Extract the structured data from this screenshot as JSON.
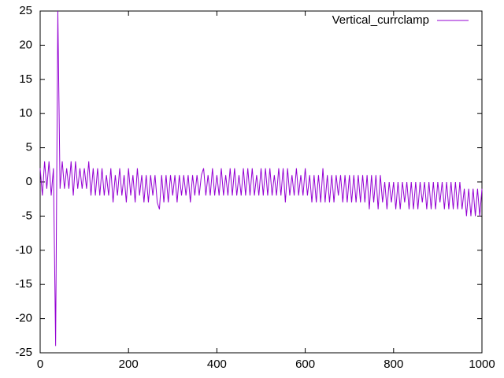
{
  "chart_data": {
    "type": "line",
    "x": [
      0,
      5,
      10,
      15,
      20,
      25,
      30,
      35,
      40,
      45,
      50,
      55,
      60,
      65,
      70,
      75,
      80,
      85,
      90,
      95,
      100,
      105,
      110,
      115,
      120,
      125,
      130,
      135,
      140,
      145,
      150,
      155,
      160,
      165,
      170,
      175,
      180,
      185,
      190,
      195,
      200,
      205,
      210,
      215,
      220,
      225,
      230,
      235,
      240,
      245,
      250,
      255,
      260,
      265,
      270,
      275,
      280,
      285,
      290,
      295,
      300,
      305,
      310,
      315,
      320,
      325,
      330,
      335,
      340,
      345,
      350,
      355,
      360,
      365,
      370,
      375,
      380,
      385,
      390,
      395,
      400,
      405,
      410,
      415,
      420,
      425,
      430,
      435,
      440,
      445,
      450,
      455,
      460,
      465,
      470,
      475,
      480,
      485,
      490,
      495,
      500,
      505,
      510,
      515,
      520,
      525,
      530,
      535,
      540,
      545,
      550,
      555,
      560,
      565,
      570,
      575,
      580,
      585,
      590,
      595,
      600,
      605,
      610,
      615,
      620,
      625,
      630,
      635,
      640,
      645,
      650,
      655,
      660,
      665,
      670,
      675,
      680,
      685,
      690,
      695,
      700,
      705,
      710,
      715,
      720,
      725,
      730,
      735,
      740,
      745,
      750,
      755,
      760,
      765,
      770,
      775,
      780,
      785,
      790,
      795,
      800,
      805,
      810,
      815,
      820,
      825,
      830,
      835,
      840,
      845,
      850,
      855,
      860,
      865,
      870,
      875,
      880,
      885,
      890,
      895,
      900,
      905,
      910,
      915,
      920,
      925,
      930,
      935,
      940,
      945,
      950,
      955,
      960,
      965,
      970,
      975,
      980,
      985,
      990,
      995,
      1000
    ],
    "series": [
      {
        "name": "Vertical_currclamp",
        "color": "#9400d3",
        "values": [
          2,
          -2,
          3,
          -1,
          3,
          -2,
          2,
          -24,
          25,
          -1,
          3,
          -1,
          2,
          -1,
          3,
          -2,
          3,
          -1,
          2,
          -1,
          2,
          -1,
          3,
          -2,
          2,
          -2,
          2,
          -2,
          2,
          -2,
          1,
          -2,
          2,
          -3,
          1,
          -2,
          2,
          -2,
          1,
          -3,
          2,
          -2,
          1,
          -3,
          2,
          -2,
          1,
          -3,
          1,
          -3,
          1,
          -2,
          1,
          -3,
          -4,
          1,
          -3,
          1,
          -3,
          1,
          -2,
          1,
          -3,
          1,
          -2,
          1,
          -2,
          1,
          -3,
          1,
          -2,
          1,
          -2,
          1,
          2,
          -2,
          1,
          -2,
          2,
          -2,
          1,
          -2,
          2,
          -2,
          1,
          -2,
          2,
          -2,
          2,
          -2,
          1,
          -2,
          2,
          -2,
          2,
          -2,
          2,
          -2,
          1,
          -2,
          2,
          -2,
          2,
          -2,
          2,
          -2,
          1,
          -2,
          2,
          -2,
          2,
          -3,
          2,
          -2,
          1,
          -2,
          2,
          -2,
          1,
          -2,
          2,
          -2,
          1,
          -3,
          1,
          -3,
          1,
          -3,
          2,
          -3,
          1,
          -3,
          1,
          -3,
          1,
          -2,
          1,
          -3,
          1,
          -3,
          1,
          -3,
          1,
          -3,
          1,
          -3,
          1,
          -3,
          1,
          -4,
          1,
          -3,
          1,
          -4,
          1,
          -3,
          0,
          -4,
          0,
          -3,
          0,
          -4,
          0,
          -4,
          0,
          -3,
          0,
          -4,
          0,
          -4,
          0,
          -4,
          0,
          -3,
          0,
          -4,
          0,
          -4,
          0,
          -4,
          0,
          -3,
          0,
          -4,
          0,
          -4,
          0,
          -4,
          0,
          -4,
          0,
          -4,
          -1,
          -5,
          -1,
          -5,
          -1,
          -5,
          -1,
          -5,
          -1
        ]
      }
    ],
    "xlim": [
      0,
      1000
    ],
    "ylim": [
      -25,
      25
    ],
    "xticks": [
      0,
      200,
      400,
      600,
      800,
      1000
    ],
    "yticks": [
      -25,
      -20,
      -15,
      -10,
      -5,
      0,
      5,
      10,
      15,
      20,
      25
    ],
    "grid": false,
    "legend": "top-right"
  }
}
